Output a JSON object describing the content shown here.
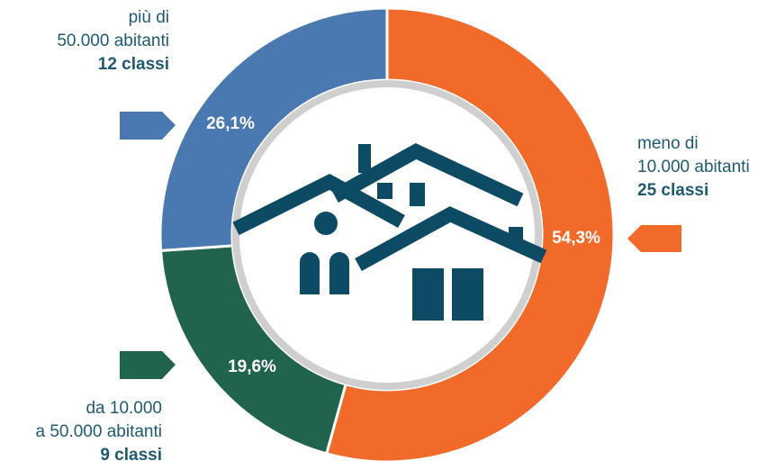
{
  "chart_data": {
    "type": "donut",
    "categories": [
      [
        "meno di",
        "10.000 abitanti"
      ],
      [
        "da 10.000",
        "a 50.000 abitanti"
      ],
      [
        "più di",
        "50.000 abitanti"
      ]
    ],
    "classes": [
      "25 classi",
      "9 classi",
      "12 classi"
    ],
    "values": [
      54.3,
      19.6,
      26.1
    ],
    "value_labels": [
      "54,3%",
      "19,6%",
      "26,1%"
    ],
    "colors": [
      "#f26a2a",
      "#20644d",
      "#4a78b0"
    ]
  }
}
